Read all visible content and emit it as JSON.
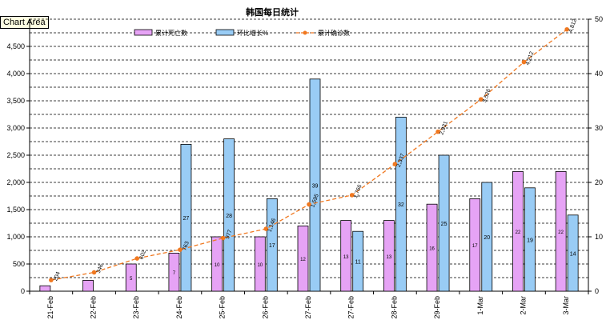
{
  "tooltip": "Chart Area",
  "chart_data": {
    "type": "bar",
    "title": "韩国每日统计",
    "categories": [
      "21-Feb",
      "22-Feb",
      "23-Feb",
      "24-Feb",
      "25-Feb",
      "26-Feb",
      "27-Feb",
      "27-Feb",
      "28-Feb",
      "29-Feb",
      "1-Mar",
      "2-Mar",
      "3-Mar"
    ],
    "series": [
      {
        "name": "累计死亡数",
        "kind": "bar",
        "axis": "left",
        "color": "#e6a3f5",
        "values": [
          100,
          200,
          500,
          700,
          1000,
          1000,
          1200,
          1300,
          1300,
          1600,
          1700,
          2200,
          2200
        ],
        "labels": [
          "",
          "",
          "5",
          "7",
          "10",
          "10",
          "12",
          "13",
          "13",
          "16",
          "17",
          "22",
          "22"
        ]
      },
      {
        "name": "环比增长%",
        "kind": "bar",
        "axis": "right",
        "color": "#99ccf5",
        "values": [
          null,
          null,
          null,
          27,
          28,
          17,
          39,
          11,
          32,
          25,
          20,
          19,
          14
        ],
        "labels": [
          "",
          "",
          "",
          "27",
          "28",
          "17",
          "39",
          "11",
          "32",
          "25",
          "20",
          "19",
          "14"
        ]
      },
      {
        "name": "累计确诊数",
        "kind": "line",
        "axis": "left",
        "color": "#f07820",
        "values": [
          204,
          346,
          602,
          763,
          977,
          1146,
          1595,
          1766,
          2337,
          2931,
          3526,
          4212,
          4812
        ],
        "labels": [
          "204",
          "346",
          "602",
          "763",
          "977",
          "1,146",
          "1,595",
          "1,766",
          "2,337",
          "2,931",
          "3,526",
          "4,212",
          "4,812"
        ]
      }
    ],
    "yleft": {
      "ylim": [
        0,
        5000
      ],
      "ticks": [
        0,
        500,
        1000,
        1500,
        2000,
        2500,
        3000,
        3500,
        4000,
        4500
      ],
      "tick_labels": [
        "0",
        "500",
        "1,000",
        "1,500",
        "2,000",
        "2,500",
        "3,000",
        "3,500",
        "4,000",
        "4,500"
      ]
    },
    "yright": {
      "ylim": [
        0,
        50
      ],
      "ticks": [
        0,
        10,
        20,
        30,
        40,
        50
      ],
      "tick_labels": [
        "0",
        "10",
        "20",
        "30",
        "40",
        "50"
      ]
    },
    "grid": true,
    "legend": "top"
  }
}
